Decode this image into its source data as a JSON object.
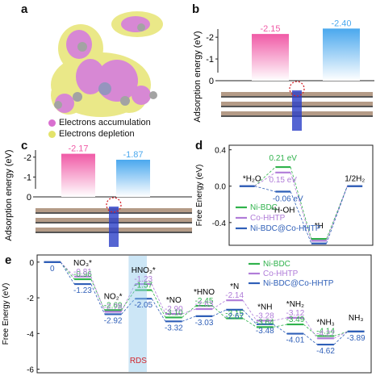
{
  "panels": {
    "a": "a",
    "b": "b",
    "c": "c",
    "d": "d",
    "e": "e"
  },
  "legend_a": {
    "accumulation": "Electrons accumulation",
    "depletion": "Electrons depletion",
    "accumulation_color": "#d96fd0",
    "depletion_color": "#e3e36a"
  },
  "chart_data": [
    {
      "panel": "b",
      "type": "bar",
      "ylabel": "Adsorption energy (eV)",
      "ylim": [
        0,
        -2.6
      ],
      "yticks": [
        "0",
        "-1",
        "-2"
      ],
      "values": [
        -2.15,
        -2.4
      ],
      "value_labels": [
        "-2.15",
        "-2.40"
      ],
      "colors": [
        "#f05aa6",
        "#4aa8ee"
      ]
    },
    {
      "panel": "c",
      "type": "bar",
      "ylabel": "Adsorption energy (eV)",
      "ylim": [
        0,
        -2.6
      ],
      "yticks": [
        "0",
        "-1",
        "-2"
      ],
      "values": [
        -2.17,
        -1.87
      ],
      "value_labels": [
        "-2.17",
        "-1.87"
      ],
      "colors": [
        "#f05aa6",
        "#4aa8ee"
      ]
    },
    {
      "panel": "d",
      "type": "line",
      "ylabel": "Free Energy (eV)",
      "ylim": [
        -0.65,
        0.45
      ],
      "yticks": [
        "0.4",
        "0.0",
        "-0.4"
      ],
      "steps": [
        "*H2O",
        "*H-OH",
        "*H",
        "1/2H2"
      ],
      "step_labels": [
        "*H₂O",
        "*H-OH",
        "*H",
        "1/2H₂"
      ],
      "series": [
        {
          "name": "Ni-BDC",
          "color": "#2fb24b",
          "values": [
            0,
            0.21,
            -0.58,
            0
          ]
        },
        {
          "name": "Co-HHTP",
          "color": "#b07cd8",
          "values": [
            0,
            0.15,
            -0.6,
            0
          ]
        },
        {
          "name": "Ni-BDC@Co-HHTP",
          "color": "#2f5fb8",
          "values": [
            0,
            -0.06,
            -0.63,
            0
          ]
        }
      ],
      "annotations": [
        "0.21 eV",
        "0.15 eV",
        "-0.06 eV"
      ]
    },
    {
      "panel": "e",
      "type": "line",
      "ylabel": "Free Energy (eV)",
      "ylim": [
        -6.2,
        0.4
      ],
      "yticks": [
        "0",
        "-2",
        "-4",
        "-6"
      ],
      "step_labels": [
        "NO₃⁻",
        "NO₃*",
        "NO₂*",
        "HNO₂*",
        "*NO",
        "*HNO",
        "*N",
        "*NH",
        "*NH₂",
        "*NH₃",
        "NH₃"
      ],
      "series": [
        {
          "name": "Ni-BDC",
          "color": "#2fb24b",
          "values": [
            0,
            -0.96,
            -2.69,
            -1.57,
            -3.1,
            -2.45,
            -3.15,
            -3.64,
            -3.49,
            -4.14,
            -3.89
          ]
        },
        {
          "name": "Co-HHTP",
          "color": "#b07cd8",
          "values": [
            0,
            -0.81,
            -2.78,
            -1.23,
            -2.9,
            -2.63,
            -2.14,
            -3.28,
            -3.12,
            -4.27,
            -3.89
          ]
        },
        {
          "name": "Ni-BDC@Co-HHTP",
          "color": "#2f5fb8",
          "values": [
            0,
            -1.23,
            -2.92,
            -2.05,
            -3.32,
            -3.03,
            -2.67,
            -3.48,
            -4.01,
            -4.62,
            -3.89
          ]
        }
      ],
      "value_labels": [
        [
          "",
          "-0.96",
          "-2.69",
          "-1.57",
          "-3.10",
          "-2.45",
          "-3.15",
          "-3.64",
          "-3.49",
          "-4.14",
          ""
        ],
        [
          "",
          "-0.81",
          "-2.78",
          "-1.23",
          "-2.90",
          "-2.63",
          "-2.14",
          "-3.28",
          "-3.12",
          "-4.27",
          ""
        ],
        [
          "0",
          "-1.23",
          "-2.92",
          "-2.05",
          "-3.32",
          "-3.03",
          "-2.67",
          "-3.48",
          "-4.01",
          "-4.62",
          "-3.89"
        ]
      ],
      "rds_label": "RDS",
      "rds_color": "#d3232a"
    }
  ]
}
